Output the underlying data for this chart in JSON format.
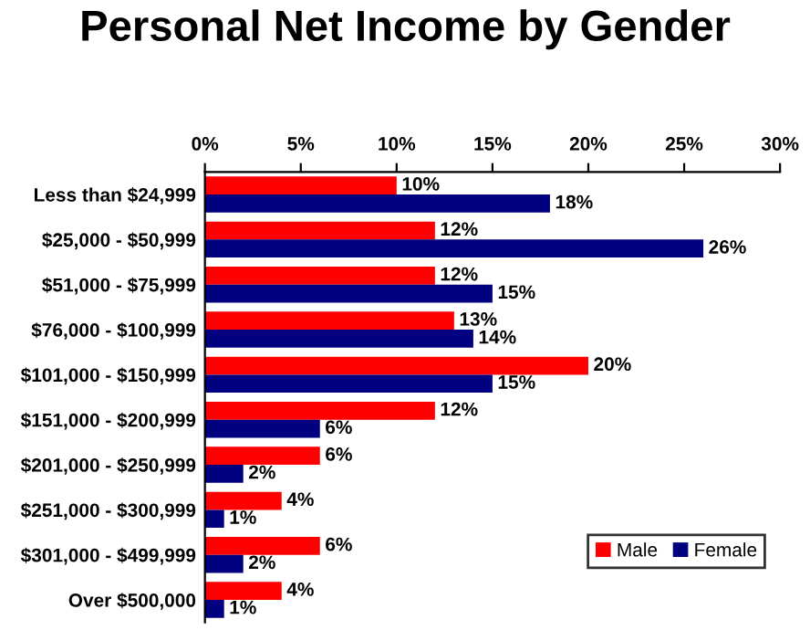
{
  "chart_data": {
    "type": "bar",
    "orientation": "horizontal",
    "title": "Personal Net Income by Gender",
    "categories": [
      "Less than $24,999",
      "$25,000 - $50,999",
      "$51,000 - $75,999",
      "$76,000 - $100,999",
      "$101,000 - $150,999",
      "$151,000 - $200,999",
      "$201,000 - $250,999",
      "$251,000 - $300,999",
      "$301,000 - $499,999",
      "Over $500,000"
    ],
    "series": [
      {
        "name": "Male",
        "color": "#ff0000",
        "values": [
          10,
          12,
          12,
          13,
          20,
          12,
          6,
          4,
          6,
          4
        ],
        "value_labels": [
          "10%",
          "12%",
          "12%",
          "13%",
          "20%",
          "12%",
          "6%",
          "4%",
          "6%",
          "4%"
        ]
      },
      {
        "name": "Female",
        "color": "#000080",
        "values": [
          18,
          26,
          15,
          14,
          15,
          6,
          2,
          1,
          2,
          1
        ],
        "value_labels": [
          "18%",
          "26%",
          "15%",
          "14%",
          "15%",
          "6%",
          "2%",
          "1%",
          "2%",
          "1%"
        ]
      }
    ],
    "xlim": [
      0,
      30
    ],
    "xticks": [
      {
        "value": 0,
        "label": "0%"
      },
      {
        "value": 5,
        "label": "5%"
      },
      {
        "value": 10,
        "label": "10%"
      },
      {
        "value": 15,
        "label": "15%"
      },
      {
        "value": 20,
        "label": "20%"
      },
      {
        "value": 25,
        "label": "25%"
      },
      {
        "value": 30,
        "label": "30%"
      }
    ],
    "grid": false,
    "legend": "bottom right"
  }
}
